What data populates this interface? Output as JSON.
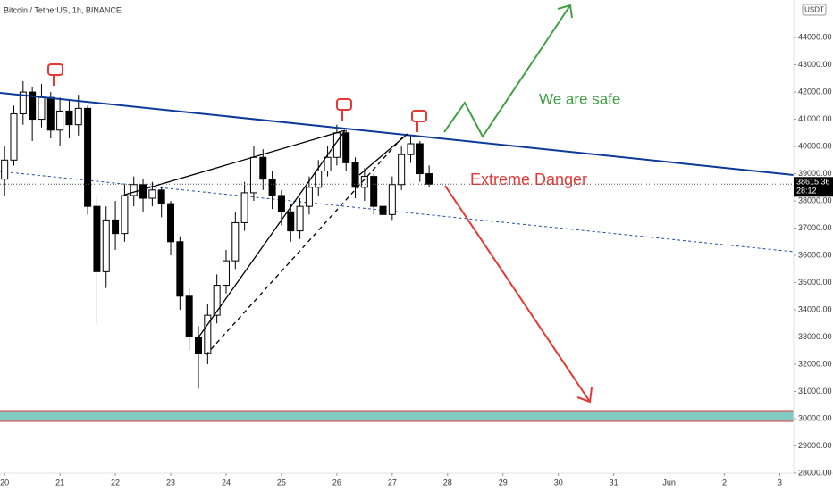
{
  "chart_data": {
    "type": "candlestick",
    "title": "Bitcoin / TetherUS, 1h, BINANCE",
    "currency": "USDT",
    "x": [
      0,
      4,
      8,
      12,
      16,
      20,
      24,
      28,
      32,
      36,
      40,
      44,
      48,
      52,
      56,
      60,
      64,
      68,
      72,
      76,
      80,
      84,
      88,
      92,
      96,
      100,
      104,
      108,
      112,
      116,
      120,
      124,
      128,
      132,
      136,
      140,
      144,
      148,
      152,
      156,
      160,
      164,
      168,
      172,
      176,
      180,
      184
    ],
    "open": [
      38800,
      39500,
      41200,
      42000,
      41000,
      41800,
      40600,
      41300,
      40800,
      41400,
      37800,
      35400,
      37300,
      36800,
      38200,
      38600,
      38100,
      38400,
      37900,
      36500,
      34500,
      33000,
      32400,
      33800,
      34900,
      35800,
      37200,
      38300,
      39600,
      38800,
      38200,
      37600,
      36900,
      37800,
      38500,
      39100,
      39600,
      40500,
      39400,
      38500,
      38900,
      37800,
      37500,
      38600,
      39700,
      40100,
      39000
    ],
    "high": [
      40000,
      41500,
      42400,
      42200,
      42300,
      42000,
      41800,
      41700,
      41900,
      41500,
      38200,
      37800,
      38000,
      38600,
      38900,
      38800,
      38700,
      38500,
      38000,
      36700,
      34800,
      33400,
      34200,
      35300,
      36200,
      37600,
      38700,
      40000,
      39900,
      39100,
      38400,
      37900,
      38100,
      38900,
      39500,
      40000,
      40800,
      40600,
      39600,
      39200,
      39000,
      38200,
      38900,
      40000,
      40400,
      40200,
      39300
    ],
    "low": [
      38200,
      39300,
      40800,
      40200,
      40700,
      40300,
      40000,
      40300,
      40400,
      37500,
      33500,
      34800,
      36200,
      36500,
      37800,
      37600,
      37800,
      37400,
      36000,
      34000,
      32500,
      31100,
      32000,
      33500,
      34600,
      35500,
      36900,
      38000,
      38400,
      37700,
      37100,
      36500,
      36600,
      37500,
      38200,
      38900,
      39300,
      39100,
      38100,
      38000,
      37500,
      37100,
      37300,
      38400,
      39400,
      38700,
      38500
    ],
    "close": [
      39500,
      41200,
      42000,
      41000,
      41800,
      40600,
      41300,
      40800,
      41400,
      37800,
      35400,
      37300,
      36800,
      38200,
      38600,
      38100,
      38400,
      37900,
      36500,
      34500,
      33000,
      32400,
      33800,
      34900,
      35800,
      37200,
      38300,
      39600,
      38800,
      38200,
      37600,
      36900,
      37800,
      38500,
      39100,
      39600,
      40500,
      39400,
      38500,
      38900,
      37800,
      37500,
      38600,
      39700,
      40100,
      39000,
      38615.36
    ],
    "up_color": "#ffffff",
    "down_color": "#000000",
    "xlim": [
      -2,
      342
    ],
    "xticks": [
      {
        "value": 0,
        "label": "20"
      },
      {
        "value": 24,
        "label": "21"
      },
      {
        "value": 48,
        "label": "22"
      },
      {
        "value": 72,
        "label": "23"
      },
      {
        "value": 96,
        "label": "24"
      },
      {
        "value": 120,
        "label": "25"
      },
      {
        "value": 144,
        "label": "26"
      },
      {
        "value": 168,
        "label": "27"
      },
      {
        "value": 192,
        "label": "28"
      },
      {
        "value": 216,
        "label": "29"
      },
      {
        "value": 240,
        "label": "30"
      },
      {
        "value": 264,
        "label": "31"
      },
      {
        "value": 288,
        "label": "Jun"
      },
      {
        "value": 312,
        "label": "2"
      },
      {
        "value": 336,
        "label": "3"
      }
    ],
    "ylim": [
      28000,
      45380
    ],
    "yticks": [
      {
        "value": 28000,
        "label": "28000.00"
      },
      {
        "value": 29000,
        "label": "29000.00"
      },
      {
        "value": 30000,
        "label": "30000.00"
      },
      {
        "value": 31000,
        "label": "31000.00"
      },
      {
        "value": 32000,
        "label": "32000.00"
      },
      {
        "value": 33000,
        "label": "33000.00"
      },
      {
        "value": 34000,
        "label": "34000.00"
      },
      {
        "value": 35000,
        "label": "35000.00"
      },
      {
        "value": 36000,
        "label": "36000.00"
      },
      {
        "value": 37000,
        "label": "37000.00"
      },
      {
        "value": 38000,
        "label": "38000.00"
      },
      {
        "value": 39000,
        "label": "39000.00"
      },
      {
        "value": 40000,
        "label": "40000.00"
      },
      {
        "value": 41000,
        "label": "41000.00"
      },
      {
        "value": 42000,
        "label": "42000.00"
      },
      {
        "value": 43000,
        "label": "43000.00"
      },
      {
        "value": 44000,
        "label": "44000.00"
      }
    ],
    "last_price": 38615.36,
    "countdown": "28:12",
    "annotations": [
      "We are safe",
      "Extreme Danger"
    ]
  }
}
